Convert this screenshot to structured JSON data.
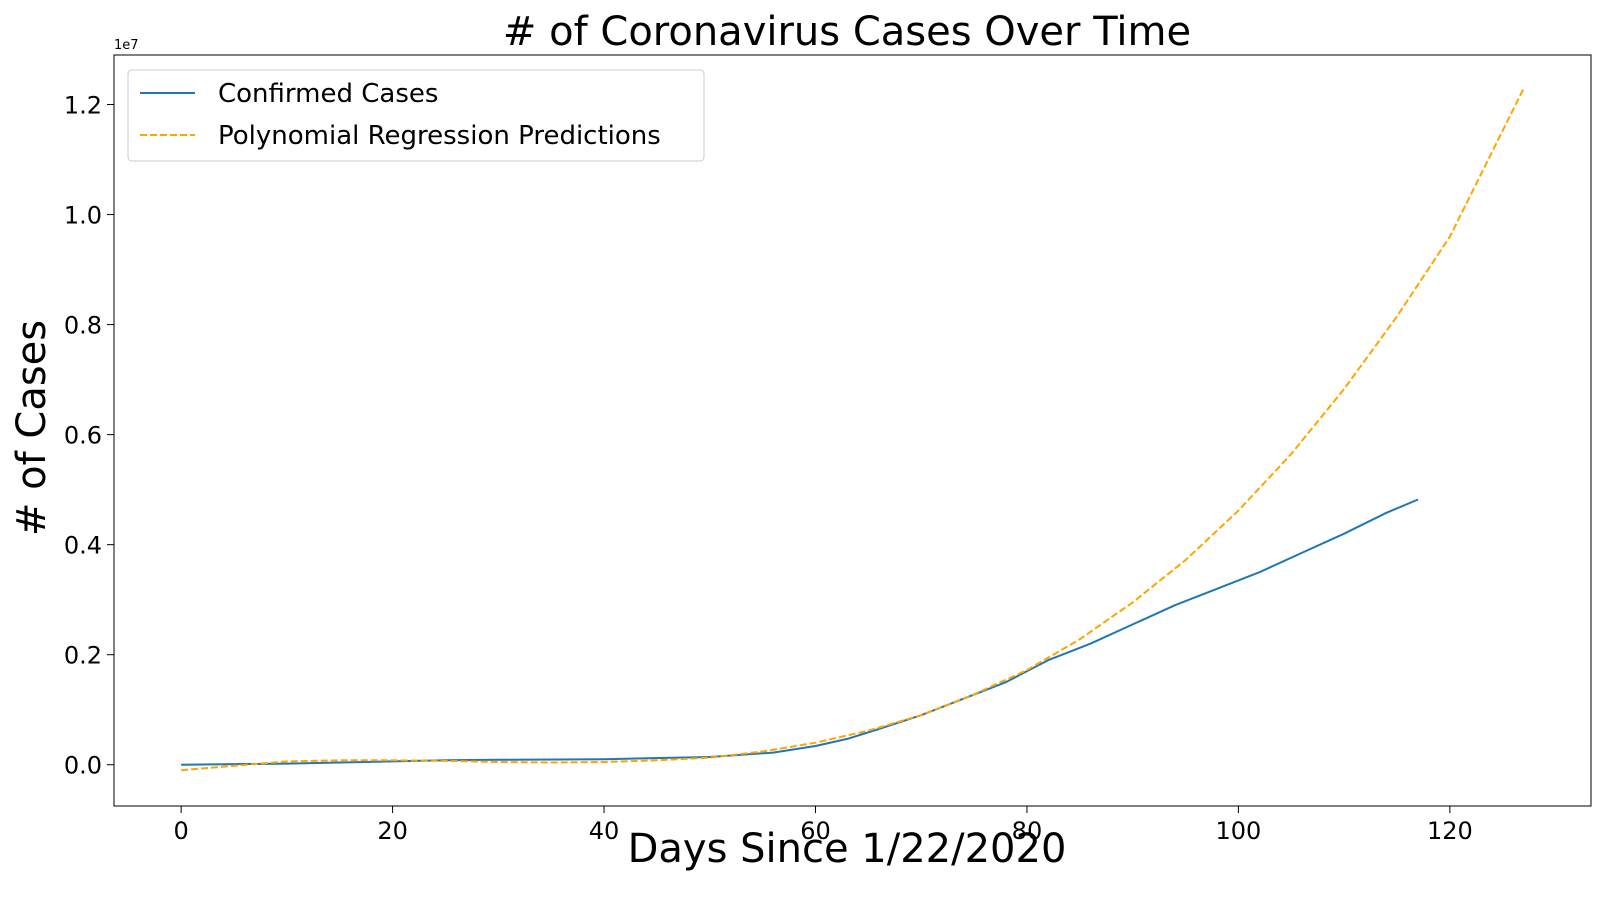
{
  "chart_data": {
    "type": "line",
    "title": "# of Coronavirus Cases Over Time",
    "xlabel": "Days Since 1/22/2020",
    "ylabel": "# of Cases",
    "y_offset_label": "1e7",
    "xlim": [
      -6.35,
      133.35
    ],
    "ylim": [
      -0.075,
      1.29
    ],
    "x_ticks": [
      0,
      20,
      40,
      60,
      80,
      100,
      120
    ],
    "y_ticks": [
      0.0,
      0.2,
      0.4,
      0.6,
      0.8,
      1.0,
      1.2
    ],
    "y_tick_labels": [
      "0.0",
      "0.2",
      "0.4",
      "0.6",
      "0.8",
      "1.0",
      "1.2"
    ],
    "grid": false,
    "legend_position": "top-left",
    "series": [
      {
        "name": "Confirmed Cases",
        "style": "solid",
        "color": "#1f77b4",
        "x": [
          0,
          10,
          20,
          25,
          30,
          40,
          50,
          56,
          60,
          63,
          66,
          70,
          74,
          78,
          82,
          86,
          90,
          94,
          98,
          102,
          106,
          110,
          114,
          117
        ],
        "y": [
          0.0,
          0.002,
          0.006,
          0.008,
          0.009,
          0.01,
          0.014,
          0.022,
          0.034,
          0.047,
          0.065,
          0.09,
          0.12,
          0.15,
          0.19,
          0.22,
          0.255,
          0.29,
          0.32,
          0.35,
          0.385,
          0.42,
          0.458,
          0.482
        ]
      },
      {
        "name": "Polynomial Regression Predictions",
        "style": "dashed",
        "color": "#ffa500",
        "x": [
          0,
          5,
          10,
          15,
          20,
          25,
          30,
          35,
          40,
          45,
          50,
          55,
          60,
          65,
          70,
          75,
          80,
          85,
          90,
          95,
          100,
          105,
          110,
          115,
          120,
          127
        ],
        "y": [
          -0.01,
          -0.002,
          0.006,
          0.008,
          0.008,
          0.007,
          0.005,
          0.004,
          0.005,
          0.008,
          0.013,
          0.024,
          0.04,
          0.062,
          0.09,
          0.128,
          0.172,
          0.228,
          0.295,
          0.372,
          0.462,
          0.565,
          0.683,
          0.815,
          0.96,
          1.23
        ]
      }
    ]
  }
}
